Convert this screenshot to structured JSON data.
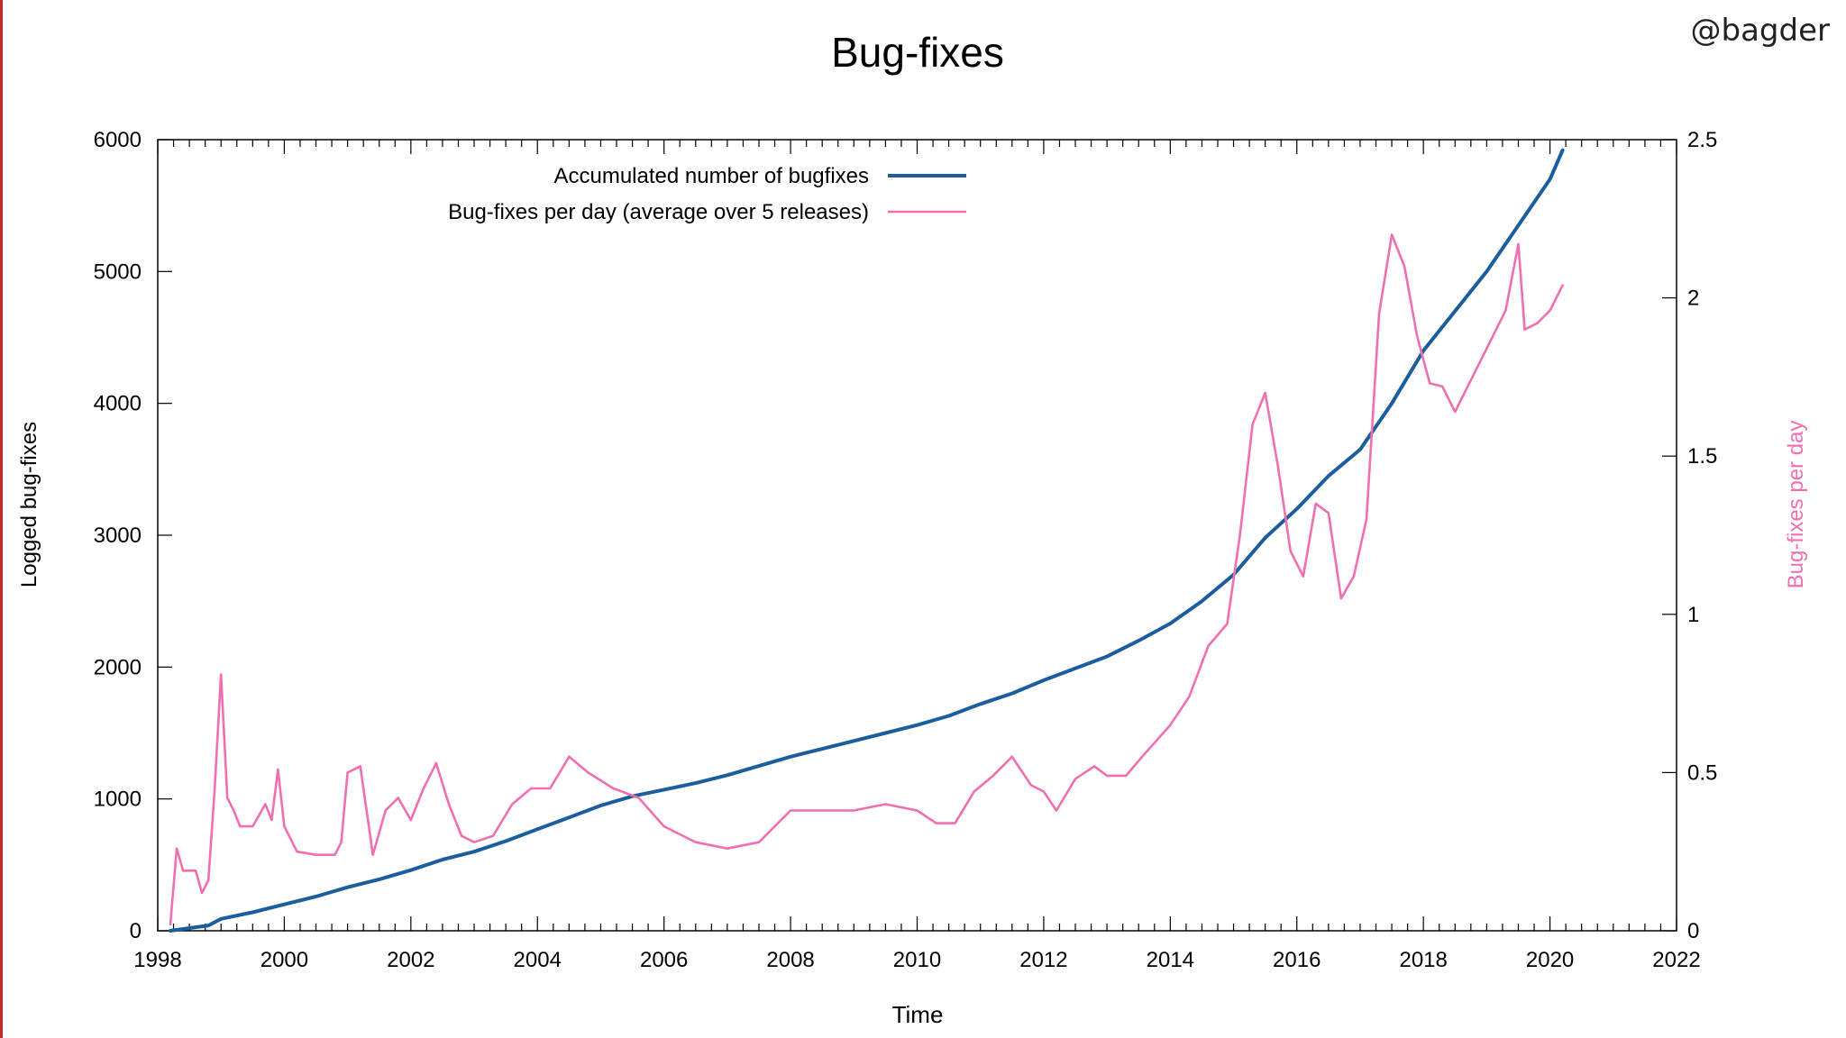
{
  "watermark": "@bagder",
  "colors": {
    "accent_blue": "#1b5e9f",
    "accent_pink": "#f06fb1",
    "frame": "#000000",
    "edge": "#c62828"
  },
  "chart_data": {
    "type": "line",
    "title": "Bug-fixes",
    "xlabel": "Time",
    "ylabel": "Logged bug-fixes",
    "y2label": "Bug-fixes per day",
    "xlim": [
      1998,
      2022
    ],
    "ylim": [
      0,
      6000
    ],
    "y2lim": [
      0,
      2.5
    ],
    "xticks": [
      1998,
      2000,
      2002,
      2004,
      2006,
      2008,
      2010,
      2012,
      2014,
      2016,
      2018,
      2020,
      2022
    ],
    "yticks": [
      0,
      1000,
      2000,
      3000,
      4000,
      5000,
      6000
    ],
    "y2ticks": [
      0,
      0.5,
      1,
      1.5,
      2,
      2.5
    ],
    "y2ticklabels": [
      "0",
      "0.5",
      "1",
      "1.5",
      "2",
      "2.5"
    ],
    "legend_position": "top-left",
    "series": [
      {
        "name": "Accumulated number of bugfixes",
        "axis": "y",
        "color": "#1b5e9f",
        "x": [
          1998.2,
          1998.8,
          1999.0,
          1999.5,
          2000.0,
          2000.5,
          2001.0,
          2001.5,
          2002.0,
          2002.5,
          2003.0,
          2003.5,
          2004.0,
          2004.5,
          2005.0,
          2005.5,
          2006.0,
          2006.5,
          2007.0,
          2007.5,
          2008.0,
          2008.5,
          2009.0,
          2009.5,
          2010.0,
          2010.5,
          2011.0,
          2011.5,
          2012.0,
          2012.5,
          2013.0,
          2013.5,
          2014.0,
          2014.5,
          2015.0,
          2015.5,
          2016.0,
          2016.5,
          2017.0,
          2017.5,
          2018.0,
          2018.5,
          2019.0,
          2019.5,
          2020.0,
          2020.2
        ],
        "values": [
          0,
          40,
          90,
          140,
          200,
          260,
          330,
          390,
          460,
          540,
          600,
          680,
          770,
          860,
          950,
          1020,
          1070,
          1120,
          1180,
          1250,
          1320,
          1380,
          1440,
          1500,
          1560,
          1630,
          1720,
          1800,
          1900,
          1990,
          2080,
          2200,
          2330,
          2500,
          2700,
          2980,
          3200,
          3450,
          3650,
          4000,
          4400,
          4700,
          5000,
          5350,
          5700,
          5920
        ]
      },
      {
        "name": "Bug-fixes per day (average over 5 releases)",
        "axis": "y2",
        "color": "#f06fb1",
        "x": [
          1998.2,
          1998.3,
          1998.4,
          1998.5,
          1998.6,
          1998.7,
          1998.8,
          1998.9,
          1999.0,
          1999.1,
          1999.2,
          1999.3,
          1999.5,
          1999.7,
          1999.8,
          1999.9,
          2000.0,
          2000.2,
          2000.5,
          2000.8,
          2000.9,
          2001.0,
          2001.2,
          2001.4,
          2001.6,
          2001.8,
          2002.0,
          2002.2,
          2002.4,
          2002.6,
          2002.8,
          2003.0,
          2003.3,
          2003.6,
          2003.9,
          2004.2,
          2004.5,
          2004.8,
          2005.2,
          2005.6,
          2006.0,
          2006.5,
          2007.0,
          2007.5,
          2008.0,
          2008.5,
          2009.0,
          2009.5,
          2010.0,
          2010.3,
          2010.6,
          2010.9,
          2011.2,
          2011.5,
          2011.8,
          2012.0,
          2012.2,
          2012.5,
          2012.8,
          2013.0,
          2013.3,
          2013.6,
          2014.0,
          2014.3,
          2014.6,
          2014.9,
          2015.1,
          2015.3,
          2015.5,
          2015.7,
          2015.9,
          2016.1,
          2016.3,
          2016.5,
          2016.7,
          2016.9,
          2017.1,
          2017.3,
          2017.5,
          2017.7,
          2017.9,
          2018.1,
          2018.3,
          2018.5,
          2018.7,
          2018.9,
          2019.1,
          2019.3,
          2019.5,
          2019.6,
          2019.8,
          2020.0,
          2020.2
        ],
        "values": [
          0.02,
          0.26,
          0.19,
          0.19,
          0.19,
          0.12,
          0.16,
          0.45,
          0.81,
          0.42,
          0.38,
          0.33,
          0.33,
          0.4,
          0.35,
          0.51,
          0.33,
          0.25,
          0.24,
          0.24,
          0.28,
          0.5,
          0.52,
          0.24,
          0.38,
          0.42,
          0.35,
          0.45,
          0.53,
          0.4,
          0.3,
          0.28,
          0.3,
          0.4,
          0.45,
          0.45,
          0.55,
          0.5,
          0.45,
          0.42,
          0.33,
          0.28,
          0.26,
          0.28,
          0.38,
          0.38,
          0.38,
          0.4,
          0.38,
          0.34,
          0.34,
          0.44,
          0.49,
          0.55,
          0.46,
          0.44,
          0.38,
          0.48,
          0.52,
          0.49,
          0.49,
          0.56,
          0.65,
          0.74,
          0.9,
          0.97,
          1.25,
          1.6,
          1.7,
          1.47,
          1.2,
          1.12,
          1.35,
          1.32,
          1.05,
          1.12,
          1.3,
          1.95,
          2.2,
          2.1,
          1.88,
          1.73,
          1.72,
          1.64,
          1.72,
          1.8,
          1.88,
          1.96,
          2.17,
          1.9,
          1.92,
          1.96,
          2.04
        ]
      }
    ]
  }
}
